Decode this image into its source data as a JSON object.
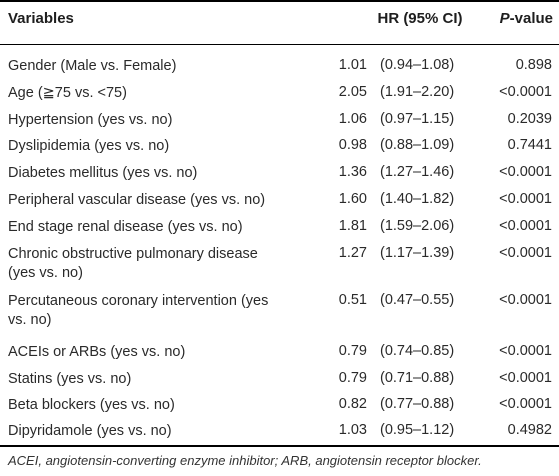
{
  "header": {
    "variables": "Variables",
    "hr": "HR (95% CI)",
    "p_italic": "P",
    "p_rest": "-value"
  },
  "rows": [
    {
      "variable": "Gender (Male vs. Female)",
      "hr": "1.01",
      "ci": "(0.94–1.08)",
      "p": "0.898"
    },
    {
      "variable": "Age (≧75 vs. <75)",
      "hr": "2.05",
      "ci": "(1.91–2.20)",
      "p": "<0.0001"
    },
    {
      "variable": "Hypertension (yes vs. no)",
      "hr": "1.06",
      "ci": "(0.97–1.15)",
      "p": "0.2039"
    },
    {
      "variable": "Dyslipidemia (yes vs. no)",
      "hr": "0.98",
      "ci": "(0.88–1.09)",
      "p": "0.7441"
    },
    {
      "variable": "Diabetes mellitus (yes vs. no)",
      "hr": "1.36",
      "ci": "(1.27–1.46)",
      "p": "<0.0001"
    },
    {
      "variable": "Peripheral vascular disease (yes vs. no)",
      "hr": "1.60",
      "ci": "(1.40–1.82)",
      "p": "<0.0001"
    },
    {
      "variable": "End stage renal disease (yes vs. no)",
      "hr": "1.81",
      "ci": "(1.59–2.06)",
      "p": "<0.0001"
    },
    {
      "variable_line1": "Chronic obstructive pulmonary disease",
      "variable_line2": "(yes vs. no)",
      "hr": "1.27",
      "ci": "(1.17–1.39)",
      "p": "<0.0001"
    },
    {
      "variable_line1": "Percutaneous coronary intervention (yes",
      "variable_line2": "vs. no)",
      "hr": "0.51",
      "ci": "(0.47–0.55)",
      "p": "<0.0001"
    },
    {
      "variable": "ACEIs or ARBs (yes vs. no)",
      "hr": "0.79",
      "ci": "(0.74–0.85)",
      "p": "<0.0001"
    },
    {
      "variable": "Statins (yes vs. no)",
      "hr": "0.79",
      "ci": "(0.71–0.88)",
      "p": "<0.0001"
    },
    {
      "variable": "Beta blockers (yes vs. no)",
      "hr": "0.82",
      "ci": "(0.77–0.88)",
      "p": "<0.0001"
    },
    {
      "variable": "Dipyridamole (yes vs. no)",
      "hr": "1.03",
      "ci": "(0.95–1.12)",
      "p": "0.4982"
    }
  ],
  "footnote": "ACEI, angiotensin-converting enzyme inhibitor; ARB, angiotensin receptor blocker."
}
